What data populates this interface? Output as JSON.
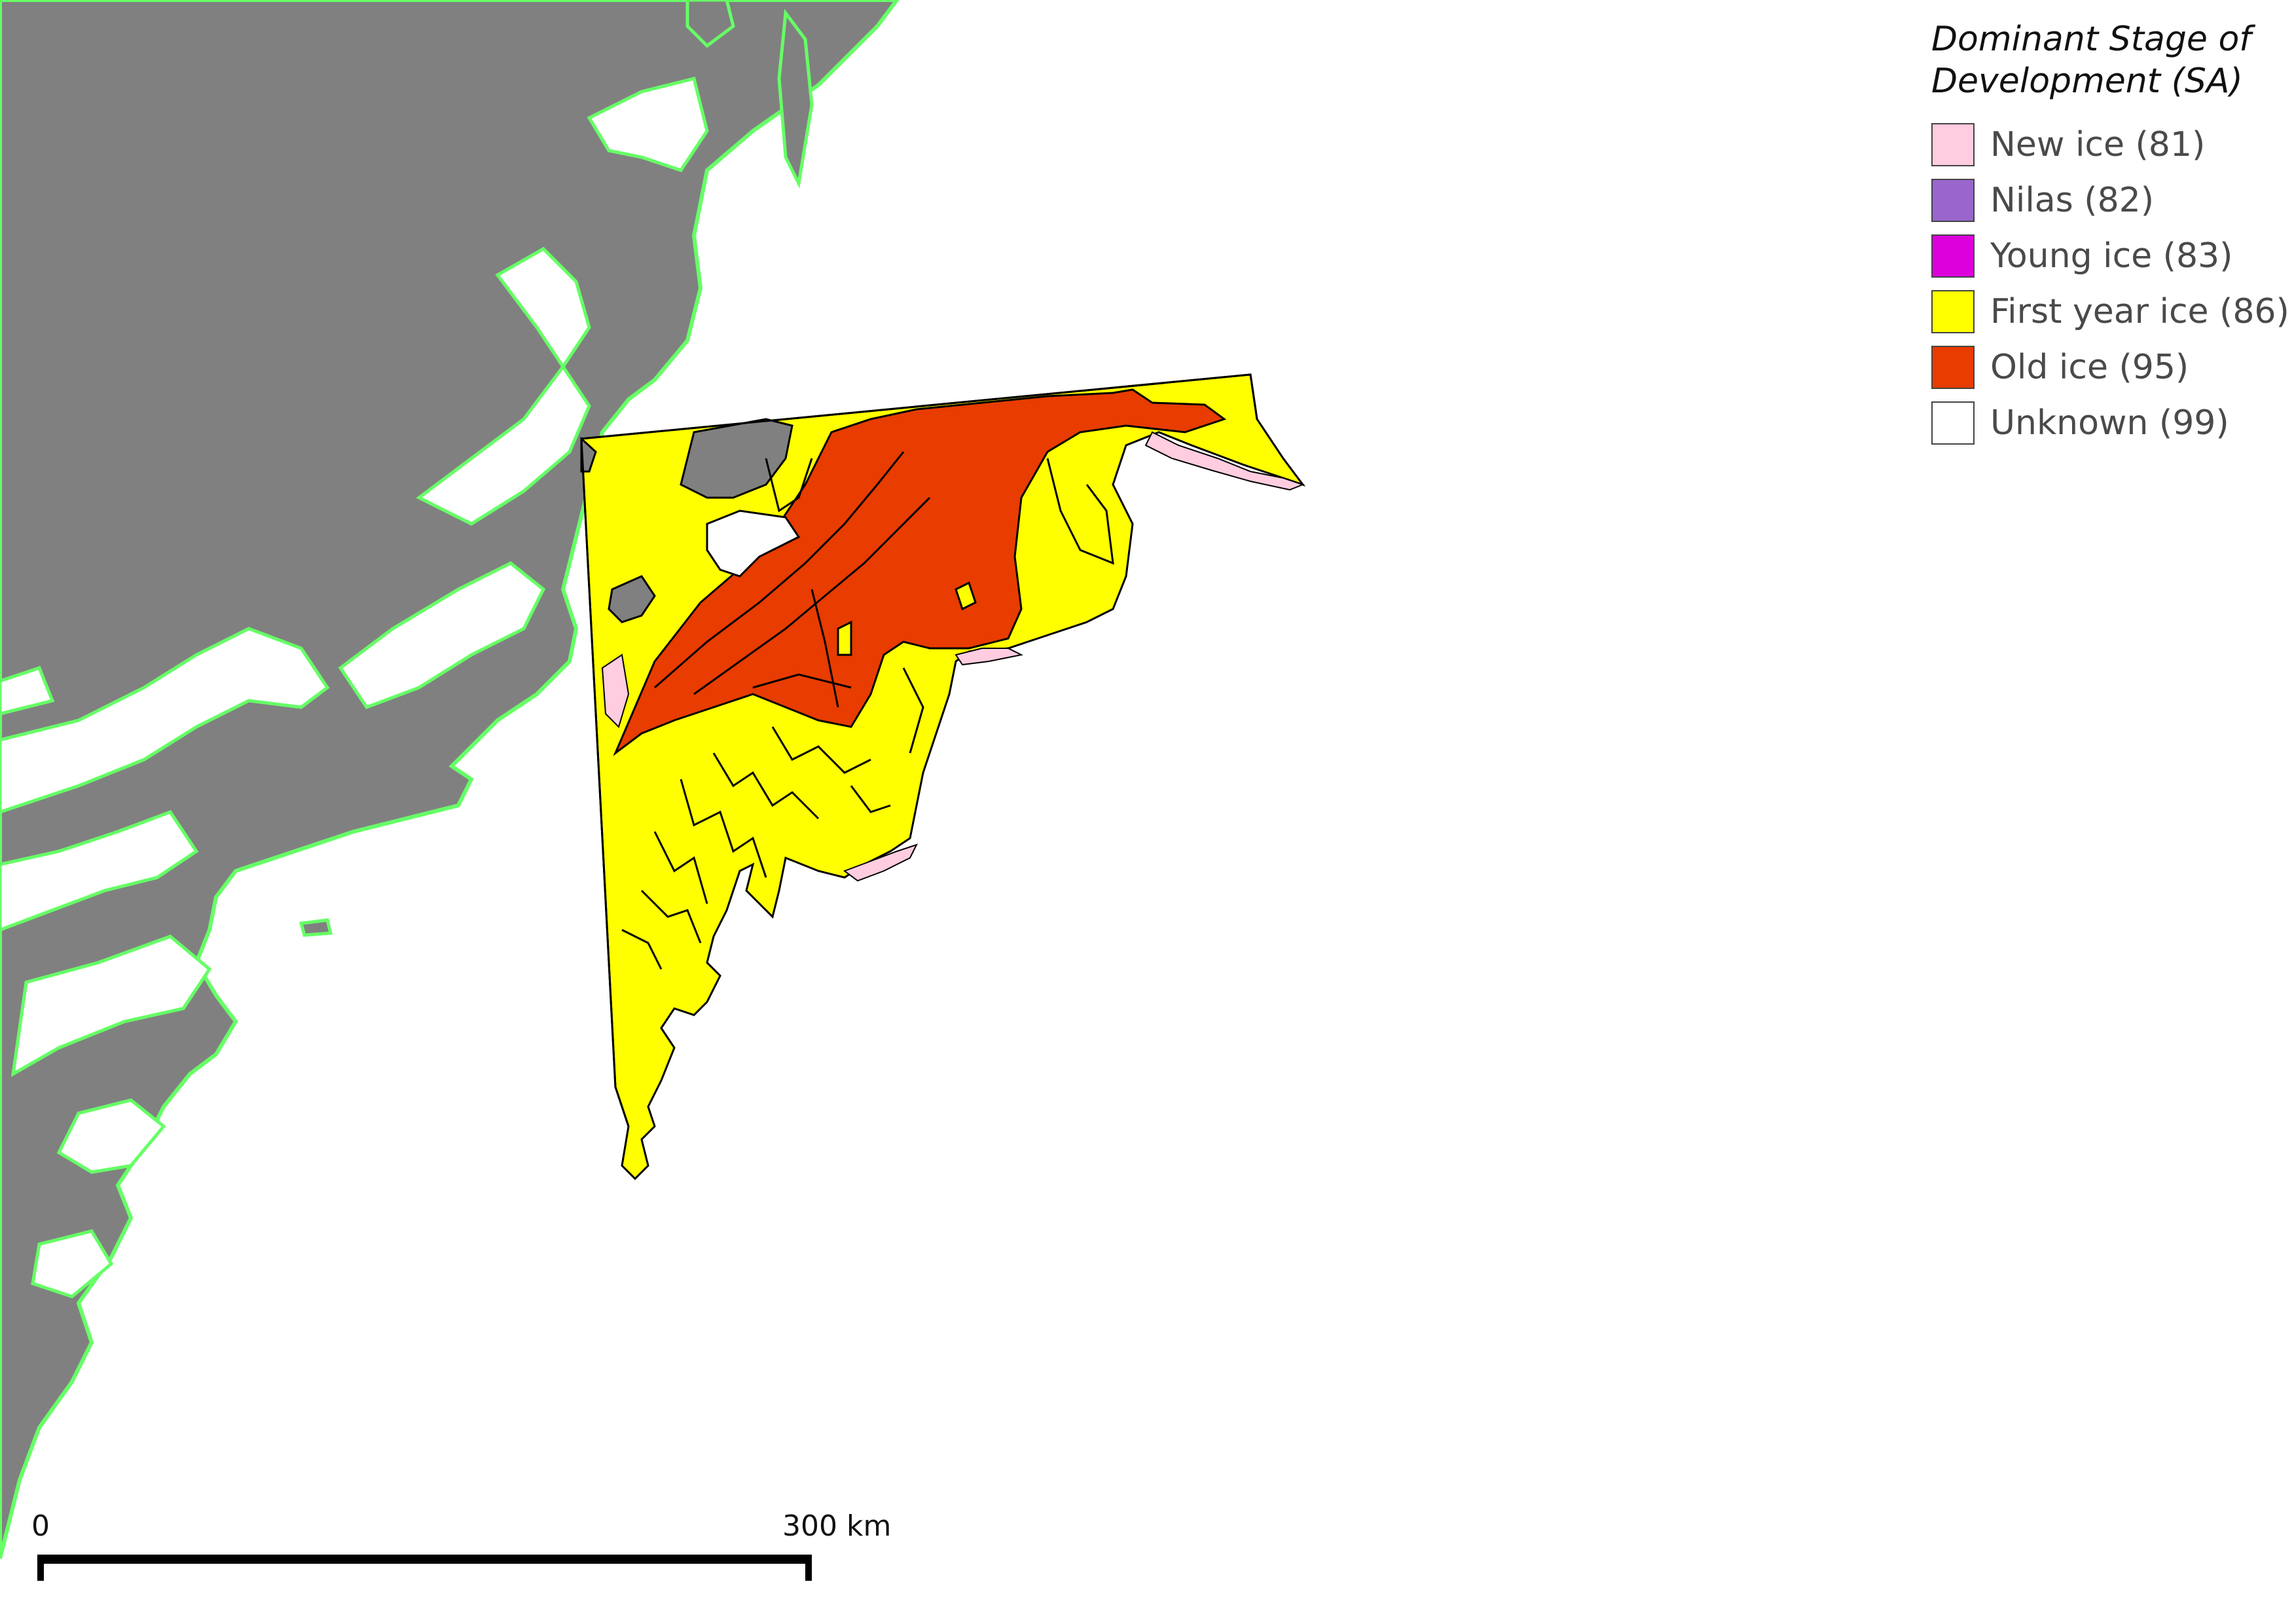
{
  "legend": {
    "title_line1": "Dominant Stage of",
    "title_line2": "Development (SA)",
    "items": [
      {
        "label": "New ice (81)",
        "color": "#ffcce0"
      },
      {
        "label": "Nilas (82)",
        "color": "#9966cc"
      },
      {
        "label": "Young ice (83)",
        "color": "#dd00dd"
      },
      {
        "label": "First year ice (86)",
        "color": "#ffff00"
      },
      {
        "label": "Old ice (95)",
        "color": "#e83c00"
      },
      {
        "label": "Unknown (99)",
        "color": "#ffffff"
      }
    ]
  },
  "scalebar": {
    "start_label": "0",
    "end_label": "300 km",
    "length_km": 300
  },
  "colors": {
    "land": "#808080",
    "coastline": "#66ff66",
    "water": "#ffffff",
    "boundary": "#000000"
  }
}
